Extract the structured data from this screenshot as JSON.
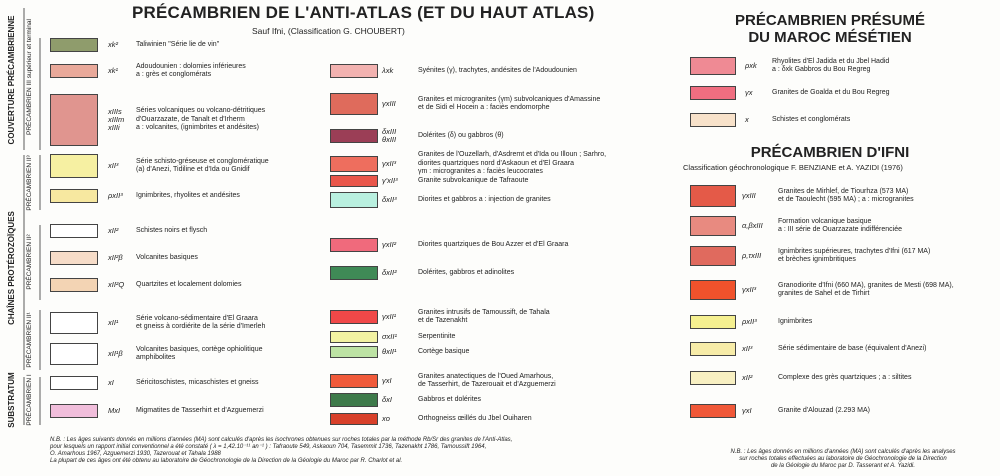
{
  "anti_atlas": {
    "title": "PRÉCAMBRIEN DE L'ANTI-ATLAS (ET DU HAUT ATLAS)",
    "subtitle": "Sauf Ifni, (Classification G. CHOUBERT)",
    "side_labels": [
      "COUVERTURE PRÉCAMBRIENNE",
      "PRÉCAMBRIEN III supérieur et terminal",
      "CHAÎNES PROTÉROZOÏQUES",
      "PRÉCAMBRIEN II³",
      "PRÉCAMBRIEN II²",
      "PRÉCAMBRIEN II¹",
      "SUBSTRATUM",
      "PRÉCAMBRIEN I"
    ],
    "items": [
      {
        "code": "xk²",
        "text": "Taliwinien \"Série lie de vin\"",
        "color": "#8f9c6c"
      },
      {
        "code": "xk¹",
        "text": "Adoudounien : dolomies inférieures\na : grès et conglomérats",
        "color": "#e9a99a"
      },
      {
        "code": "xIIIs\nxIIIm\nxIIIi",
        "text": "Séries volcaniques ou volcano-détritiques\nd'Ouarzazate, de Tanalt et d'Irherm\na : volcanites, (ignimbrites et andésites)",
        "color": "#e0958f"
      },
      {
        "code": "xII³",
        "text": "Série schisto-gréseuse et conglomératique\n(a) d'Anezi, Tidiline et d'Ida ou Gnidif",
        "color": "#f6f0a2"
      },
      {
        "code": "ρxII³",
        "text": "Ignimbrites, rhyolites et andésites",
        "color": "#f7e8a0"
      },
      {
        "code": "xII²",
        "text": "Schistes noirs et flysch",
        "color": "#ffffff"
      },
      {
        "code": "xII²β",
        "text": "Volcanites basiques",
        "color": "#f6dcc8"
      },
      {
        "code": "xII²Q",
        "text": "Quartzites et localement dolomies",
        "color": "#f3d4b4"
      },
      {
        "code": "xII¹",
        "text": "Série volcano-sédimentaire d'El Graara\net gneiss à cordiérite de la série d'Imerleh",
        "color": "#ffffff"
      },
      {
        "code": "xII¹β",
        "text": "Volcanites basiques, cortège ophiolitique\namphibolites",
        "color": "#ffffff"
      },
      {
        "code": "xI",
        "text": "Séricitoschistes, micaschistes et gneiss",
        "color": "#ffffff"
      },
      {
        "code": "MxI",
        "text": "Migmatites de Tasserhirt et d'Azguemerzi",
        "color": "#f1bedb"
      }
    ],
    "middle_items": [
      {
        "code": "λxk",
        "text": "Syénites (γ), trachytes, andésites de l'Adoudounien",
        "color": "#f2b2b0"
      },
      {
        "code": "γxIII",
        "text": "Granites et microgranites (γm) subvolcaniques d'Amassine\net de Sidi el Hocein    a : faciès endomorphe",
        "color": "#df6b5c"
      },
      {
        "code": "δxIII\nθxIII",
        "text": "Dolérites (δ) ou gabbros (θ)",
        "color": "#9b3e56"
      },
      {
        "code": "γxII³",
        "text": "Granites de l'Ouzellarh, d'Asdremt et d'Ida ou Illoun ; Sarhro,\ndiorites quartziques nord d'Askaoun et d'El Graara\nγm : microgranites    a : faciès leucocrates",
        "color": "#ee6e5e"
      },
      {
        "code": "γ'xII³",
        "text": "Granite subvolcanique de Tafraoute",
        "color": "#e9564a"
      },
      {
        "code": "δxII³",
        "text": "Diorites et gabbros    a : injection de granites",
        "color": "#b9f0df"
      },
      {
        "code": "γxII²",
        "text": "Diorites quartziques de Bou Azzer et d'El Graara",
        "color": "#f06a7c"
      },
      {
        "code": "δxII²",
        "text": "Dolérites, gabbros et adinolites",
        "color": "#3f8a56"
      },
      {
        "code": "γxII¹",
        "text": "Granites intrusifs de Tamoussift, de Tahala\net de Tazenakht",
        "color": "#f04848"
      },
      {
        "code": "σxII¹",
        "text": "Serpentinite",
        "color": "#f2f2a2"
      },
      {
        "code": "θxII¹",
        "text": "Cortège basique",
        "color": "#bde3a4"
      },
      {
        "code": "γxI",
        "text": "Granites anatectiques de l'Oued Amarhous,\nde Tasserhirt, de Tazerouait et d'Azguemerzi",
        "color": "#f05a3a"
      },
      {
        "code": "δxI",
        "text": "Gabbros et dolérites",
        "color": "#3e7a4a"
      },
      {
        "code": "xo",
        "text": "Orthogneiss œillés du Jbel Ouiharen",
        "color": "#d8402a"
      }
    ],
    "note": "N.B. : Les âges suivants donnés en millions d'années (MA) sont calculés d'après les isochrones obtenues sur roches totales par la méthode Rb/Sr des granites de l'Anti-Atlas,\npour lesquels un rapport initial conventionnel a été constaté ( λ = 1,42.10⁻¹¹ an⁻¹ ) : Tafraoute 549, Askaoun 704, Tasemmit 1736, Tazenakht 1786, Tamoussift 1964,\nO. Amarhous 1967, Azguemerzi 1930, Tazerouat et Tahala 1988\nLa plupart de ces âges ont été obtenu au laboratoire de Géochronologie de la Direction de la Géologie du Maroc par R. Charlot et al."
  },
  "mesetien": {
    "title": "PRÉCAMBRIEN PRÉSUMÉ\nDU MAROC MÉSÉTIEN",
    "items": [
      {
        "code": "ρxk",
        "text": "Rhyolites d'El Jadida et du Jbel Hadid\na : δxk Gabbros du Bou Regreg",
        "color": "#ef8a94"
      },
      {
        "code": "γx",
        "text": "Granites de Goalda et du Bou Regreg",
        "color": "#f06e80"
      },
      {
        "code": "x",
        "text": "Schistes et conglomérats",
        "color": "#f8e2ca"
      }
    ]
  },
  "ifni": {
    "title": "PRÉCAMBRIEN D'IFNI",
    "subtitle": "Classification géochronologique F. BENZIANE et A. YAZIDI (1976)",
    "items": [
      {
        "code": "γxIII",
        "text": "Granites de Mirhlef, de Tiourhza (573 MA)\net de Taoulecht (595 MA) ; a : microgranites",
        "color": "#e45a48"
      },
      {
        "code": "α,βxIII",
        "text": "Formation volcanique basique\na : III série de Ouarzazate indifférenciée",
        "color": "#e88a80"
      },
      {
        "code": "ρ,τxIII",
        "text": "Ignimbrites supérieures, trachytes d'Ifni (617 MA)\net brèches ignimbritiques",
        "color": "#e06a5e"
      },
      {
        "code": "γxII³",
        "text": "Granodiorite d'Ifni (660 MA), granites de Mesti (698 MA),\ngranites de Sahel et de Tirhirt",
        "color": "#f0522c"
      },
      {
        "code": "ρxII³",
        "text": "Ignimbrites",
        "color": "#f5f090"
      },
      {
        "code": "xII³",
        "text": "Série sédimentaire de base (équivalent d'Anezi)",
        "color": "#f7eca8"
      },
      {
        "code": "xII²",
        "text": "Complexe des grès quartziques ; a : siltites",
        "color": "#f8f0c2"
      },
      {
        "code": "γxI",
        "text": "Granite d'Alouzad (2.293 MA)",
        "color": "#f05838"
      }
    ],
    "note": "N.B. : Les âges donnés en millions d'années (MA) sont calculés d'après les analyses\nsur roches totales effectuées au laboratoire de Géochronologie de la Direction\nde la Géologie du Maroc par D. Tasserant et A. Yazidi."
  }
}
